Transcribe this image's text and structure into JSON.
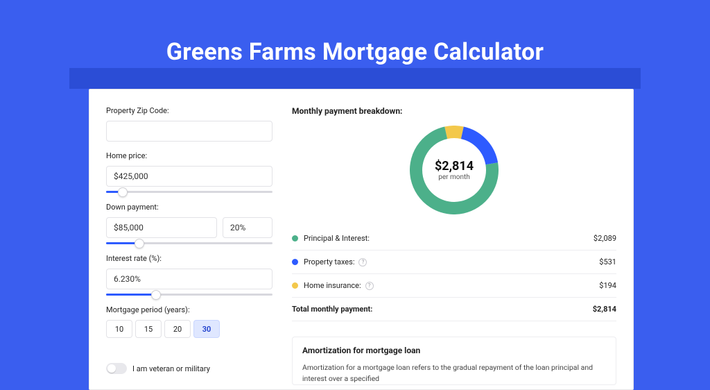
{
  "page": {
    "title": "Greens Farms Mortgage Calculator",
    "background_color": "#3a5eef",
    "inner_band_color": "#2b4dd6"
  },
  "form": {
    "zip": {
      "label": "Property Zip Code:",
      "value": ""
    },
    "home_price": {
      "label": "Home price:",
      "value": "$425,000",
      "slider_pct": 10
    },
    "down_payment": {
      "label": "Down payment:",
      "amount": "$85,000",
      "pct_text": "20%",
      "slider_pct": 20
    },
    "interest_rate": {
      "label": "Interest rate (%):",
      "value": "6.230%",
      "slider_pct": 30
    },
    "period": {
      "label": "Mortgage period (years):",
      "options": [
        "10",
        "15",
        "20",
        "30"
      ],
      "selected_index": 3
    },
    "veteran": {
      "label": "I am veteran or military",
      "checked": false
    }
  },
  "breakdown": {
    "title": "Monthly payment breakdown:",
    "donut": {
      "center_value": "$2,814",
      "center_sub": "per month",
      "slices": [
        {
          "key": "principal_interest",
          "value": 2089,
          "color": "#4cb08a"
        },
        {
          "key": "property_taxes",
          "value": 531,
          "color": "#2e5bff"
        },
        {
          "key": "home_insurance",
          "value": 194,
          "color": "#f3c84b"
        }
      ],
      "stroke_width": 18,
      "radius_outer": 64
    },
    "items": [
      {
        "label": "Principal & Interest:",
        "amount": "$2,089",
        "color": "#4cb08a",
        "info": false
      },
      {
        "label": "Property taxes:",
        "amount": "$531",
        "color": "#2e5bff",
        "info": true
      },
      {
        "label": "Home insurance:",
        "amount": "$194",
        "color": "#f3c84b",
        "info": true
      }
    ],
    "total": {
      "label": "Total monthly payment:",
      "amount": "$2,814"
    }
  },
  "amortization": {
    "title": "Amortization for mortgage loan",
    "body": "Amortization for a mortgage loan refers to the gradual repayment of the loan principal and interest over a specified"
  }
}
